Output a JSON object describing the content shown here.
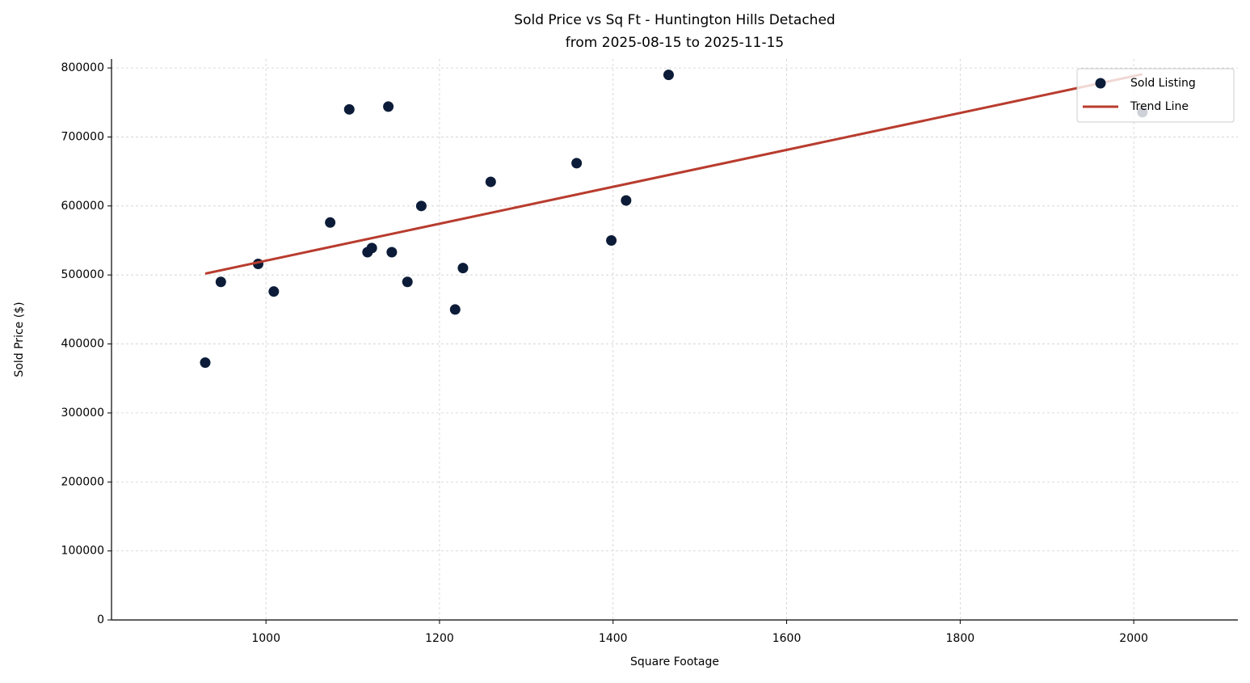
{
  "chart_data": {
    "type": "scatter",
    "title": "Sold Price vs Sq Ft - Huntington Hills Detached",
    "subtitle": "from 2025-08-15 to 2025-11-15",
    "x_label": "Square Footage",
    "y_label": "Sold Price ($)",
    "xlim": [
      822,
      2120
    ],
    "ylim": [
      0,
      813000
    ],
    "xticks": [
      1000,
      1200,
      1400,
      1600,
      1800,
      2000
    ],
    "yticks": [
      0,
      100000,
      200000,
      300000,
      400000,
      500000,
      600000,
      700000,
      800000
    ],
    "grid": true,
    "legend": "upper right",
    "series": [
      {
        "name": "Sold Listing",
        "type": "scatter",
        "color": "#0c1c38",
        "x": [
          930,
          948,
          991,
          1009,
          1074,
          1096,
          1117,
          1122,
          1141,
          1145,
          1163,
          1179,
          1218,
          1227,
          1259,
          1358,
          1398,
          1415,
          1464,
          2010
        ],
        "values": [
          373000,
          490000,
          516000,
          476000,
          576000,
          740000,
          533000,
          539000,
          744000,
          533000,
          490000,
          600000,
          450000,
          510000,
          635000,
          662000,
          550000,
          608000,
          790000,
          736000
        ]
      },
      {
        "name": "Trend Line",
        "type": "line",
        "color": "#b83c2e",
        "x": [
          930,
          2010
        ],
        "values": [
          502000,
          791000
        ]
      }
    ]
  }
}
